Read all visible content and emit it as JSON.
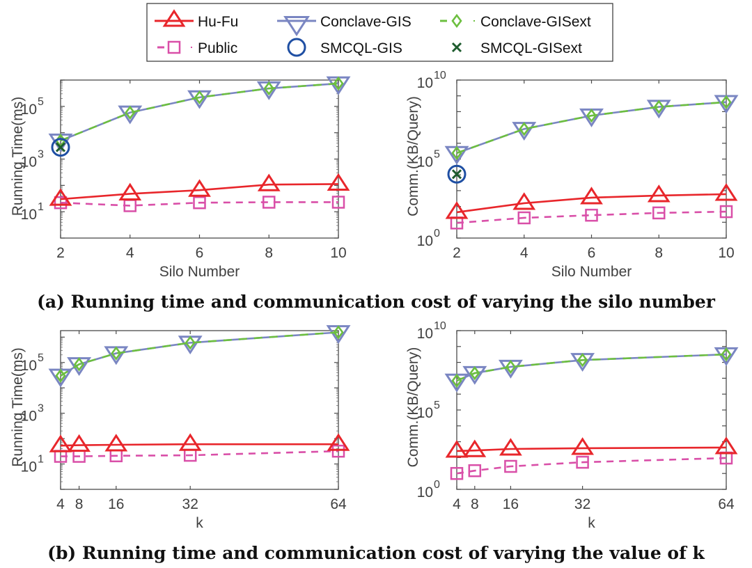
{
  "legend": {
    "placement": "top-center",
    "entries": [
      {
        "name": "Hu-Fu",
        "color": "#e8262b",
        "marker": "triangle-up",
        "line": "solid"
      },
      {
        "name": "Conclave-GIS",
        "color": "#7a86c2",
        "marker": "triangle-down",
        "line": "solid"
      },
      {
        "name": "Conclave-GISext",
        "color": "#6cbf3f",
        "marker": "diamond",
        "line": "dashed"
      },
      {
        "name": "Public",
        "color": "#d94fa8",
        "marker": "square",
        "line": "dashed"
      },
      {
        "name": "SMCQL-GIS",
        "color": "#1f4fa3",
        "marker": "circle",
        "line": "none"
      },
      {
        "name": "SMCQL-GISext",
        "color": "#1e5c2e",
        "marker": "x",
        "line": "none"
      }
    ]
  },
  "captions": {
    "a": "(a) Running time and communication cost of varying the silo number",
    "b": "(b) Running time and communication cost of varying the value of k"
  },
  "chart_data": [
    {
      "id": "a-time",
      "type": "line",
      "xlabel": "Silo Number",
      "ylabel": "Running Time(ms)",
      "yscale": "log",
      "x": [
        2,
        4,
        6,
        8,
        10
      ],
      "xlim": [
        2,
        10
      ],
      "xticks": [
        2,
        4,
        6,
        8,
        10
      ],
      "ylim": [
        1,
        1000000
      ],
      "yticks": [
        {
          "exp": 1,
          "label": "10"
        },
        {
          "exp": 3,
          "label": "10"
        },
        {
          "exp": 5,
          "label": "10"
        }
      ],
      "series": [
        {
          "name": "Hu-Fu",
          "values": [
            30,
            48,
            66,
            107,
            112
          ]
        },
        {
          "name": "Conclave-GIS",
          "values": [
            5000,
            58000,
            220000,
            480000,
            740000
          ]
        },
        {
          "name": "Conclave-GISext",
          "values": [
            5000,
            58000,
            220000,
            480000,
            740000
          ]
        },
        {
          "name": "Public",
          "values": [
            22,
            17,
            22,
            23,
            23
          ]
        },
        {
          "name": "SMCQL-GIS",
          "values": [
            2800,
            null,
            null,
            null,
            null
          ]
        },
        {
          "name": "SMCQL-GISext",
          "values": [
            2800,
            null,
            null,
            null,
            null
          ]
        }
      ]
    },
    {
      "id": "a-comm",
      "type": "line",
      "xlabel": "Silo Number",
      "ylabel": "Comm.(KB/Query)",
      "yscale": "log",
      "x": [
        2,
        4,
        6,
        8,
        10
      ],
      "xlim": [
        2,
        10
      ],
      "xticks": [
        2,
        4,
        6,
        8,
        10
      ],
      "ylim": [
        1,
        10000000000
      ],
      "yticks": [
        {
          "exp": 0,
          "label": "10"
        },
        {
          "exp": 5,
          "label": "10"
        },
        {
          "exp": 10,
          "label": "10"
        }
      ],
      "series": [
        {
          "name": "Hu-Fu",
          "values": [
            43,
            160,
            360,
            490,
            600
          ]
        },
        {
          "name": "Conclave-GIS",
          "values": [
            240000,
            8000000,
            56000000,
            200000000,
            400000000
          ]
        },
        {
          "name": "Conclave-GISext",
          "values": [
            240000,
            8000000,
            56000000,
            200000000,
            400000000
          ]
        },
        {
          "name": "Public",
          "values": [
            9,
            19,
            28,
            39,
            47
          ]
        },
        {
          "name": "SMCQL-GIS",
          "values": [
            11000,
            null,
            null,
            null,
            null
          ]
        },
        {
          "name": "SMCQL-GISext",
          "values": [
            11000,
            null,
            null,
            null,
            null
          ]
        }
      ]
    },
    {
      "id": "b-time",
      "type": "line",
      "xlabel": "k",
      "ylabel": "Running Time(ms)",
      "yscale": "log",
      "x": [
        4,
        8,
        16,
        32,
        64
      ],
      "xlim": [
        4,
        64
      ],
      "xticks": [
        4,
        8,
        16,
        32,
        64
      ],
      "ylim": [
        1,
        1800000
      ],
      "yticks": [
        {
          "exp": 1,
          "label": "10"
        },
        {
          "exp": 3,
          "label": "10"
        },
        {
          "exp": 5,
          "label": "10"
        }
      ],
      "series": [
        {
          "name": "Hu-Fu",
          "values": [
            53,
            55,
            57,
            60,
            60
          ]
        },
        {
          "name": "Conclave-GIS",
          "values": [
            30000,
            85000,
            230000,
            600000,
            1550000
          ]
        },
        {
          "name": "Conclave-GISext",
          "values": [
            30000,
            85000,
            230000,
            600000,
            1550000
          ]
        },
        {
          "name": "Public",
          "values": [
            20,
            20,
            21,
            22,
            32
          ]
        }
      ]
    },
    {
      "id": "b-comm",
      "type": "line",
      "xlabel": "k",
      "ylabel": "Comm.(KB/Query)",
      "yscale": "log",
      "x": [
        4,
        8,
        16,
        32,
        64
      ],
      "xlim": [
        4,
        64
      ],
      "xticks": [
        4,
        8,
        16,
        32,
        64
      ],
      "ylim": [
        1,
        10000000000
      ],
      "yticks": [
        {
          "exp": 0,
          "label": "10"
        },
        {
          "exp": 5,
          "label": "10"
        },
        {
          "exp": 10,
          "label": "10"
        }
      ],
      "series": [
        {
          "name": "Hu-Fu",
          "values": [
            260,
            280,
            350,
            390,
            430
          ]
        },
        {
          "name": "Conclave-GIS",
          "values": [
            7000000,
            21000000,
            52000000,
            140000000,
            320000000
          ]
        },
        {
          "name": "Conclave-GISext",
          "values": [
            7000000,
            21000000,
            52000000,
            140000000,
            320000000
          ]
        },
        {
          "name": "Public",
          "values": [
            10,
            15,
            28,
            51,
            94
          ]
        }
      ]
    }
  ]
}
